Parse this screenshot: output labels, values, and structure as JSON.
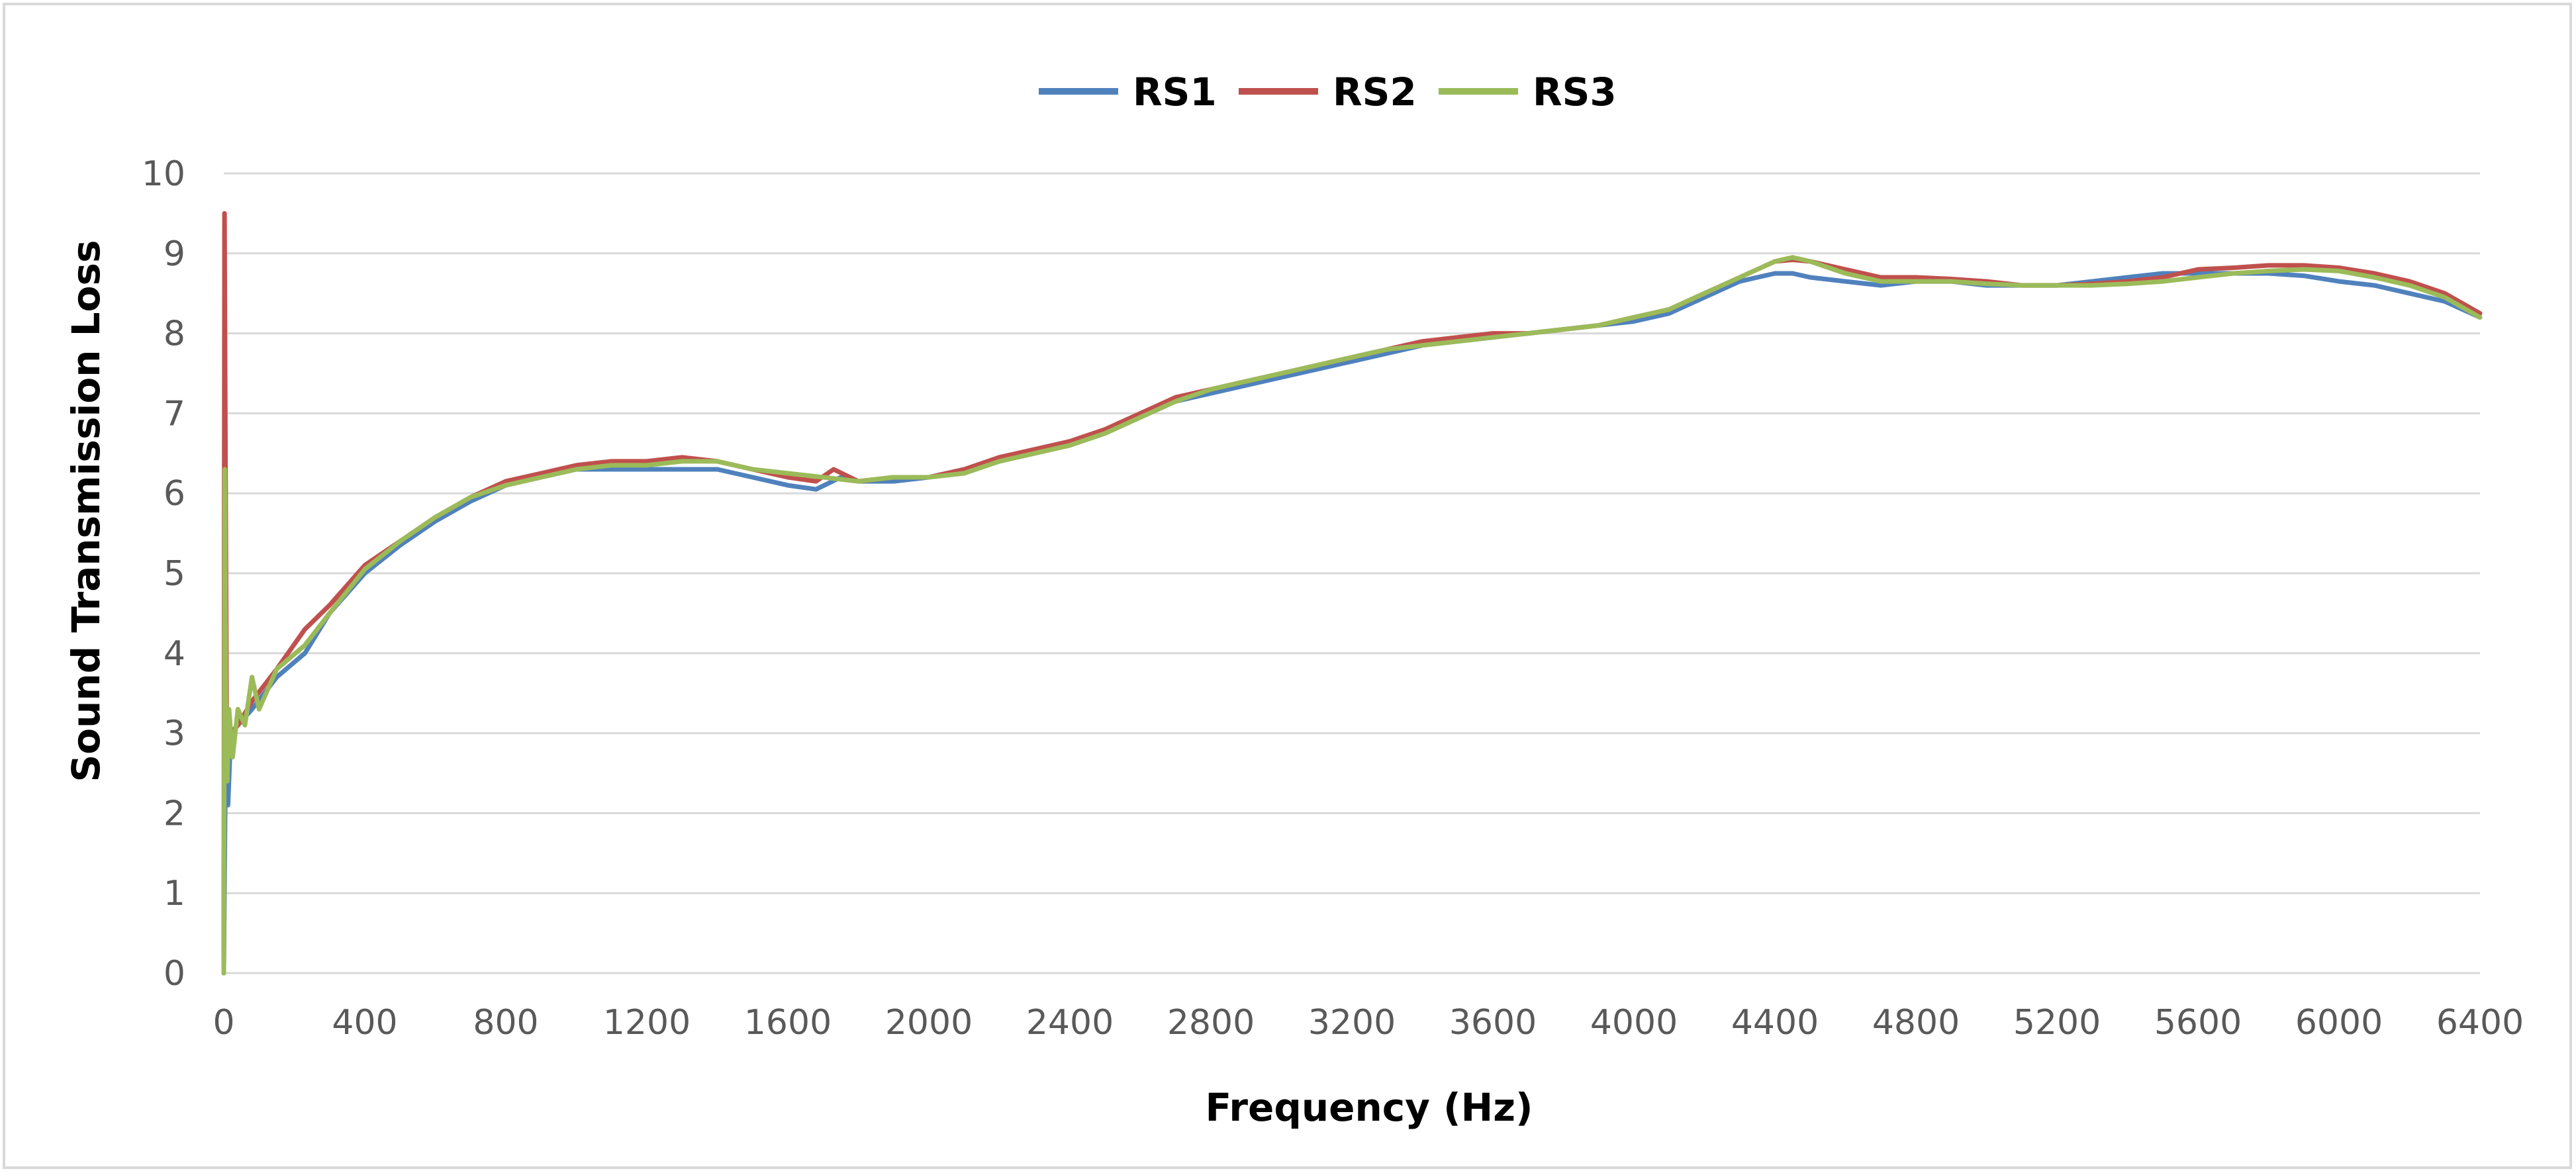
{
  "chart_data": {
    "type": "line",
    "title": "",
    "xlabel": "Frequency (Hz)",
    "ylabel": "Sound Transmission Loss",
    "xlim": [
      0,
      6400
    ],
    "ylim": [
      0,
      10
    ],
    "xticks": [
      0,
      400,
      800,
      1200,
      1600,
      2000,
      2400,
      2800,
      3200,
      3600,
      4000,
      4400,
      4800,
      5200,
      5600,
      6000,
      6400
    ],
    "xtick_labels": [
      "0",
      "400",
      "800",
      "1200",
      "1600",
      "2000",
      "2400",
      "2800",
      "3200",
      "3600",
      "4000",
      "4400",
      "4800",
      "5200",
      "5600",
      "6000",
      "6400"
    ],
    "yticks": [
      0,
      1,
      2,
      3,
      4,
      5,
      6,
      7,
      8,
      9,
      10
    ],
    "ytick_labels": [
      "0",
      "1",
      "2",
      "3",
      "4",
      "5",
      "6",
      "7",
      "8",
      "9",
      "10"
    ],
    "grid": "horizontal",
    "legend_position": "top-center",
    "series": [
      {
        "name": "RS1",
        "color": "#4f81bd",
        "x": [
          0,
          6,
          12,
          20,
          40,
          80,
          150,
          230,
          300,
          400,
          500,
          600,
          700,
          800,
          900,
          1000,
          1100,
          1200,
          1300,
          1400,
          1500,
          1600,
          1680,
          1750,
          1800,
          1900,
          2000,
          2100,
          2200,
          2300,
          2400,
          2500,
          2600,
          2700,
          2800,
          2900,
          3000,
          3100,
          3200,
          3300,
          3400,
          3500,
          3600,
          3700,
          3800,
          3900,
          4000,
          4100,
          4200,
          4300,
          4400,
          4450,
          4500,
          4600,
          4700,
          4800,
          4900,
          5000,
          5100,
          5200,
          5300,
          5400,
          5500,
          5600,
          5700,
          5800,
          5900,
          6000,
          6100,
          6200,
          6300,
          6400
        ],
        "y": [
          0,
          3.2,
          2.1,
          3.0,
          3.1,
          3.3,
          3.7,
          4.0,
          4.5,
          5.0,
          5.35,
          5.65,
          5.9,
          6.1,
          6.2,
          6.3,
          6.3,
          6.3,
          6.3,
          6.3,
          6.2,
          6.1,
          6.05,
          6.2,
          6.15,
          6.15,
          6.2,
          6.3,
          6.4,
          6.5,
          6.6,
          6.75,
          6.95,
          7.15,
          7.25,
          7.35,
          7.45,
          7.55,
          7.65,
          7.75,
          7.85,
          7.9,
          7.95,
          8.0,
          8.05,
          8.1,
          8.15,
          8.25,
          8.45,
          8.65,
          8.75,
          8.75,
          8.7,
          8.65,
          8.6,
          8.65,
          8.65,
          8.6,
          8.6,
          8.6,
          8.65,
          8.7,
          8.75,
          8.75,
          8.75,
          8.75,
          8.72,
          8.65,
          8.6,
          8.5,
          8.4,
          8.2
        ]
      },
      {
        "name": "RS2",
        "color": "#c0504d",
        "x": [
          0,
          2,
          5,
          8,
          12,
          20,
          40,
          80,
          150,
          230,
          300,
          400,
          500,
          600,
          700,
          800,
          900,
          1000,
          1100,
          1200,
          1300,
          1400,
          1500,
          1600,
          1680,
          1730,
          1800,
          1900,
          2000,
          2100,
          2200,
          2300,
          2400,
          2500,
          2600,
          2700,
          2800,
          2900,
          3000,
          3100,
          3200,
          3300,
          3400,
          3500,
          3600,
          3700,
          3800,
          3900,
          4000,
          4100,
          4200,
          4300,
          4400,
          4450,
          4500,
          4600,
          4700,
          4800,
          4900,
          5000,
          5100,
          5200,
          5300,
          5400,
          5500,
          5600,
          5700,
          5800,
          5900,
          6000,
          6100,
          6200,
          6300,
          6400
        ],
        "y": [
          0,
          9.5,
          6.2,
          3.3,
          2.8,
          3.0,
          3.1,
          3.4,
          3.8,
          4.3,
          4.6,
          5.1,
          5.4,
          5.7,
          5.95,
          6.15,
          6.25,
          6.35,
          6.4,
          6.4,
          6.45,
          6.4,
          6.3,
          6.2,
          6.15,
          6.3,
          6.15,
          6.2,
          6.2,
          6.3,
          6.45,
          6.55,
          6.65,
          6.8,
          7.0,
          7.2,
          7.3,
          7.4,
          7.5,
          7.6,
          7.7,
          7.8,
          7.9,
          7.95,
          8.0,
          8.0,
          8.05,
          8.1,
          8.2,
          8.3,
          8.5,
          8.7,
          8.9,
          8.92,
          8.9,
          8.8,
          8.7,
          8.7,
          8.68,
          8.65,
          8.6,
          8.6,
          8.62,
          8.65,
          8.7,
          8.8,
          8.82,
          8.85,
          8.85,
          8.82,
          8.75,
          8.65,
          8.5,
          8.25
        ]
      },
      {
        "name": "RS3",
        "color": "#9bbb59",
        "x": [
          0,
          3,
          6,
          10,
          15,
          25,
          40,
          60,
          80,
          100,
          150,
          230,
          300,
          400,
          500,
          600,
          700,
          800,
          900,
          1000,
          1100,
          1200,
          1300,
          1400,
          1500,
          1600,
          1700,
          1800,
          1900,
          2000,
          2100,
          2200,
          2300,
          2400,
          2500,
          2600,
          2700,
          2800,
          2900,
          3000,
          3100,
          3200,
          3300,
          3400,
          3500,
          3600,
          3700,
          3800,
          3900,
          4000,
          4100,
          4200,
          4300,
          4400,
          4450,
          4500,
          4600,
          4700,
          4800,
          4900,
          5000,
          5100,
          5200,
          5300,
          5400,
          5500,
          5600,
          5700,
          5800,
          5900,
          6000,
          6100,
          6200,
          6300,
          6400
        ],
        "y": [
          0,
          6.3,
          3.5,
          2.4,
          3.3,
          2.7,
          3.3,
          3.1,
          3.7,
          3.3,
          3.8,
          4.1,
          4.5,
          5.05,
          5.4,
          5.7,
          5.95,
          6.1,
          6.2,
          6.3,
          6.35,
          6.35,
          6.4,
          6.4,
          6.3,
          6.25,
          6.2,
          6.15,
          6.2,
          6.2,
          6.25,
          6.4,
          6.5,
          6.6,
          6.75,
          6.95,
          7.15,
          7.3,
          7.4,
          7.5,
          7.6,
          7.7,
          7.8,
          7.85,
          7.9,
          7.95,
          8.0,
          8.05,
          8.1,
          8.2,
          8.3,
          8.5,
          8.7,
          8.9,
          8.95,
          8.9,
          8.75,
          8.65,
          8.65,
          8.65,
          8.62,
          8.6,
          8.6,
          8.6,
          8.62,
          8.65,
          8.7,
          8.75,
          8.78,
          8.8,
          8.78,
          8.7,
          8.6,
          8.45,
          8.2
        ]
      }
    ]
  }
}
